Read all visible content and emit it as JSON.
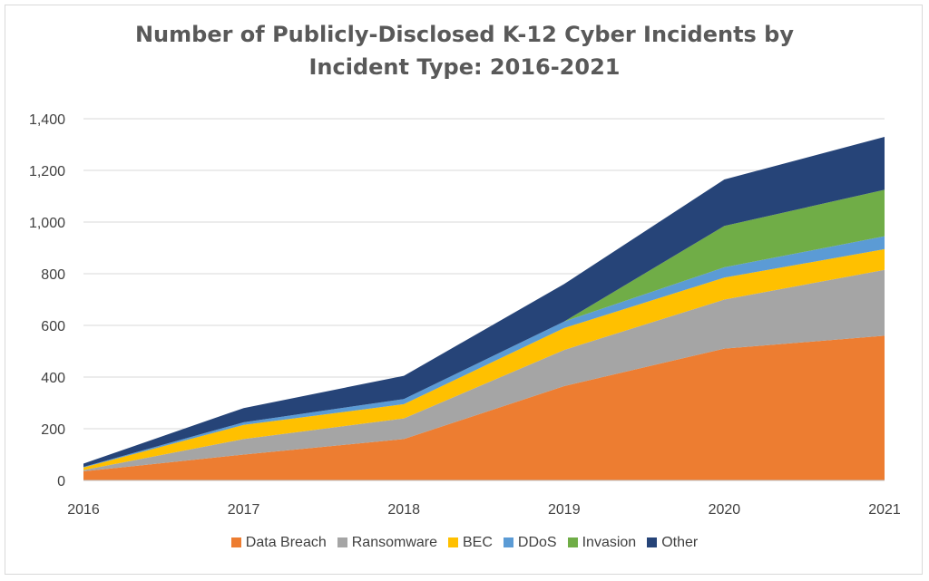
{
  "chart_data": {
    "type": "area",
    "stacked": true,
    "title_lines": [
      "Number of Publicly-Disclosed K-12 Cyber Incidents by",
      "Incident Type: 2016-2021"
    ],
    "xlabel": "",
    "ylabel": "",
    "categories": [
      "2016",
      "2017",
      "2018",
      "2019",
      "2020",
      "2021"
    ],
    "ylim": [
      0,
      1400
    ],
    "yticks": [
      0,
      200,
      400,
      600,
      800,
      1000,
      1200,
      1400
    ],
    "ytick_labels": [
      "0",
      "200",
      "400",
      "600",
      "800",
      "1,000",
      "1,200",
      "1,400"
    ],
    "grid": true,
    "legend_position": "bottom",
    "series": [
      {
        "name": "Data Breach",
        "color": "#ED7D31",
        "values": [
          35,
          100,
          160,
          365,
          510,
          560
        ]
      },
      {
        "name": "Ransomware",
        "color": "#A5A5A5",
        "values": [
          5,
          60,
          80,
          140,
          190,
          255
        ]
      },
      {
        "name": "BEC",
        "color": "#FFC000",
        "values": [
          10,
          55,
          55,
          85,
          85,
          80
        ]
      },
      {
        "name": "DDoS",
        "color": "#5B9BD5",
        "values": [
          2,
          10,
          20,
          25,
          40,
          50
        ]
      },
      {
        "name": "Invasion",
        "color": "#70AD47",
        "values": [
          0,
          0,
          0,
          0,
          160,
          180
        ]
      },
      {
        "name": "Other",
        "color": "#264478",
        "values": [
          13,
          55,
          90,
          145,
          180,
          205
        ]
      }
    ]
  }
}
